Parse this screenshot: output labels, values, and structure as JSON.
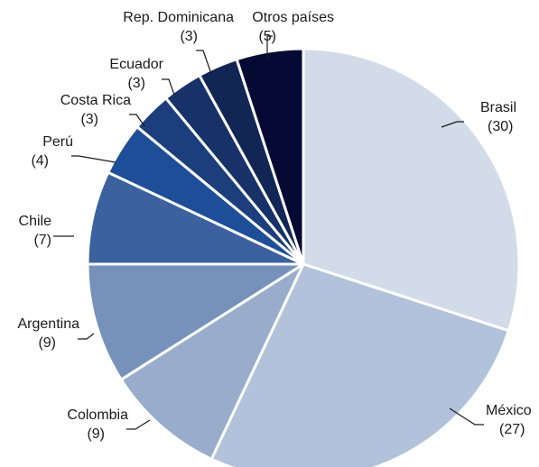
{
  "chart_data": {
    "type": "pie",
    "title": "",
    "start": "12 o'clock",
    "direction": "clockwise",
    "slices": [
      {
        "label": "Brasil",
        "value": 30,
        "display": "(30)",
        "color": "#d2dbe8"
      },
      {
        "label": "México",
        "value": 27,
        "display": "(27)",
        "color": "#b1c2da"
      },
      {
        "label": "Colombia",
        "value": 9,
        "display": "(9)",
        "color": "#98adcb"
      },
      {
        "label": "Argentina",
        "value": 9,
        "display": "(9)",
        "color": "#7692ba"
      },
      {
        "label": "Chile",
        "value": 7,
        "display": "(7)",
        "color": "#3c619f"
      },
      {
        "label": "Perú",
        "value": 4,
        "display": "(4)",
        "color": "#1f4e99"
      },
      {
        "label": "Costa Rica",
        "value": 3,
        "display": "(3)",
        "color": "#1c3e7c"
      },
      {
        "label": "Ecuador",
        "value": 3,
        "display": "(3)",
        "color": "#173268"
      },
      {
        "label": "Rep. Dominicana",
        "value": 3,
        "display": "(3)",
        "color": "#122656"
      },
      {
        "label": "Otros países",
        "value": 5,
        "display": "(5)",
        "color": "#050a35"
      }
    ]
  }
}
